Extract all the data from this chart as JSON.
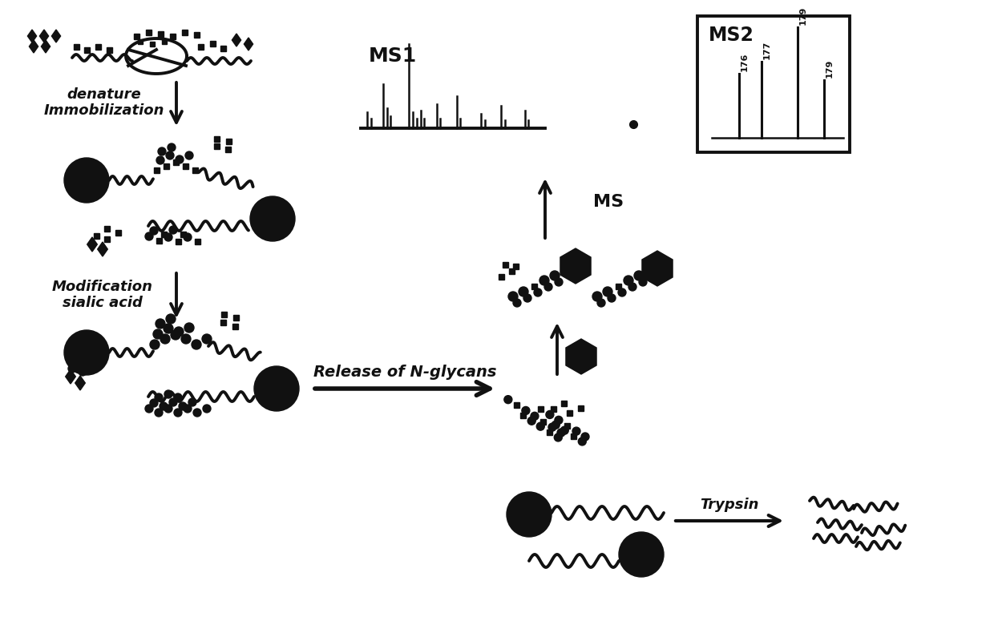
{
  "bg_color": "#ffffff",
  "text_color": "#1a1a1a",
  "labels": {
    "denature_immobilization": "denature\nImmobilization",
    "modification_sialic_acid": "Modification\nsialic acid",
    "release_n_glycans": "Release of N-glycans",
    "trypsin": "Trypsin",
    "ms": "MS",
    "ms1": "MS1",
    "ms2": "MS2"
  }
}
